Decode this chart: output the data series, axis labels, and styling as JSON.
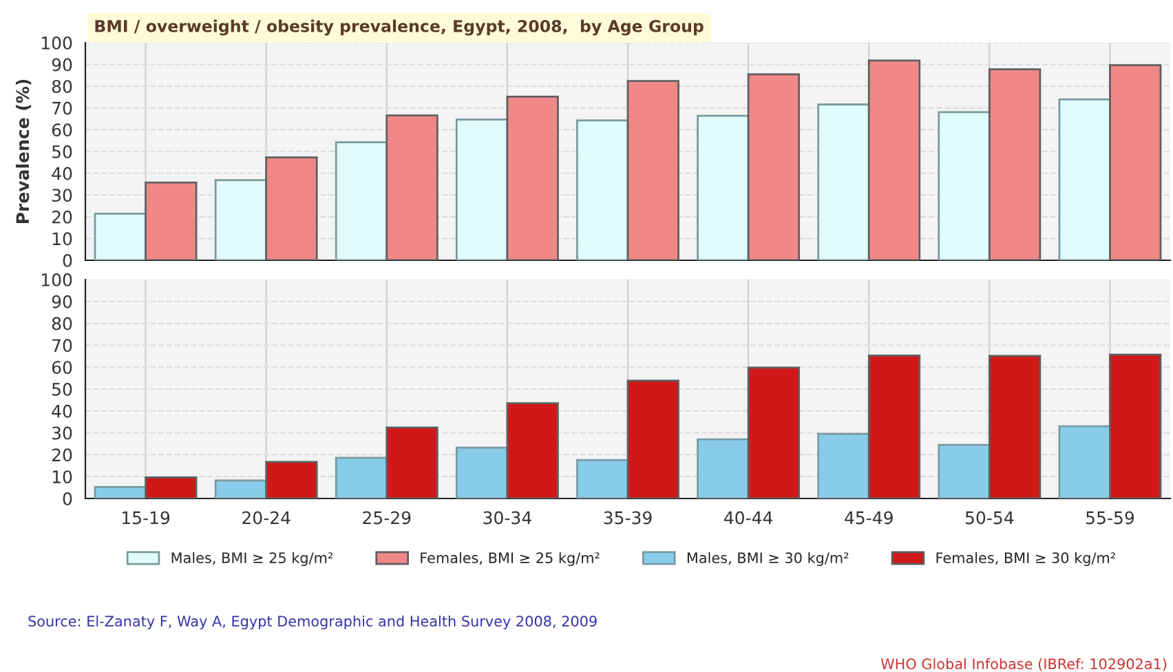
{
  "chart_data": [
    {
      "type": "bar",
      "title": "BMI / overweight / obesity prevalence, Egypt, 2008,  by Age Group",
      "ylabel": "Prevalence (%)",
      "categories": [
        null,
        null,
        null,
        null,
        null,
        null,
        null,
        null,
        null
      ],
      "series": [
        {
          "name": "Males, BMI ≥ 25 kg/m²",
          "color": "#e0fcfc",
          "values": [
            21.4,
            36.8,
            54.2,
            64.7,
            64.3,
            66.4,
            71.6,
            68.1,
            73.9
          ]
        },
        {
          "name": "Females, BMI ≥ 25 kg/m²",
          "color": "#f08888",
          "values": [
            35.7,
            47.3,
            66.6,
            75.2,
            82.4,
            85.5,
            91.8,
            87.8,
            89.7
          ]
        }
      ],
      "ylim": [
        0,
        100
      ],
      "yticks": [
        0,
        10,
        20,
        30,
        40,
        50,
        60,
        70,
        80,
        90,
        100
      ],
      "grid": true,
      "legend": "bottom",
      "tick_labels": "y"
    },
    {
      "type": "bar",
      "categories": [
        "15-19",
        "20-24",
        "25-29",
        "30-34",
        "35-39",
        "40-44",
        "45-49",
        "50-54",
        "55-59"
      ],
      "series": [
        {
          "name": "Males, BMI ≥ 30 kg/m²",
          "color": "#88ccea",
          "values": [
            5.2,
            8.2,
            18.6,
            23.2,
            17.6,
            27.0,
            29.5,
            24.5,
            33.0
          ]
        },
        {
          "name": "Females, BMI ≥ 30 kg/m²",
          "color": "#d01818",
          "values": [
            9.6,
            16.7,
            32.4,
            43.5,
            53.8,
            59.8,
            65.3,
            65.1,
            65.7
          ]
        }
      ],
      "ylim": [
        0,
        100
      ],
      "yticks": [
        0,
        10,
        20,
        30,
        40,
        50,
        60,
        70,
        80,
        90,
        100
      ],
      "grid": true,
      "legend": "bottom",
      "annotations": [
        "Source: El-Zanaty F, Way A, Egypt Demographic and Health Survey 2008, 2009",
        "WHO Global Infobase (IBRef: 102902a1)"
      ]
    }
  ]
}
